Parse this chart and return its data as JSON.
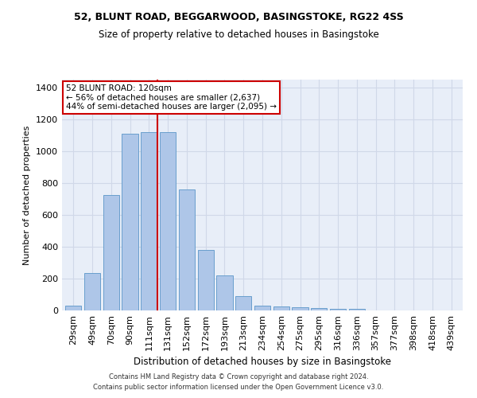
{
  "title1": "52, BLUNT ROAD, BEGGARWOOD, BASINGSTOKE, RG22 4SS",
  "title2": "Size of property relative to detached houses in Basingstoke",
  "xlabel": "Distribution of detached houses by size in Basingstoke",
  "ylabel": "Number of detached properties",
  "footnote1": "Contains HM Land Registry data © Crown copyright and database right 2024.",
  "footnote2": "Contains public sector information licensed under the Open Government Licence v3.0.",
  "bar_labels": [
    "29sqm",
    "49sqm",
    "70sqm",
    "90sqm",
    "111sqm",
    "131sqm",
    "152sqm",
    "172sqm",
    "193sqm",
    "213sqm",
    "234sqm",
    "254sqm",
    "275sqm",
    "295sqm",
    "316sqm",
    "336sqm",
    "357sqm",
    "377sqm",
    "398sqm",
    "418sqm",
    "439sqm"
  ],
  "bar_values": [
    30,
    235,
    725,
    1110,
    1120,
    1120,
    760,
    378,
    222,
    88,
    30,
    25,
    20,
    14,
    10,
    10,
    0,
    0,
    0,
    0,
    0
  ],
  "bar_color": "#aec6e8",
  "bar_edge_color": "#5a96c8",
  "vline_color": "#cc0000",
  "annotation_text": "52 BLUNT ROAD: 120sqm\n← 56% of detached houses are smaller (2,637)\n44% of semi-detached houses are larger (2,095) →",
  "annotation_box_color": "#cc0000",
  "background_color": "#ffffff",
  "plot_bg_color": "#e8eef8",
  "grid_color": "#d0d8e8",
  "ylim": [
    0,
    1450
  ],
  "yticks": [
    0,
    200,
    400,
    600,
    800,
    1000,
    1200,
    1400
  ]
}
